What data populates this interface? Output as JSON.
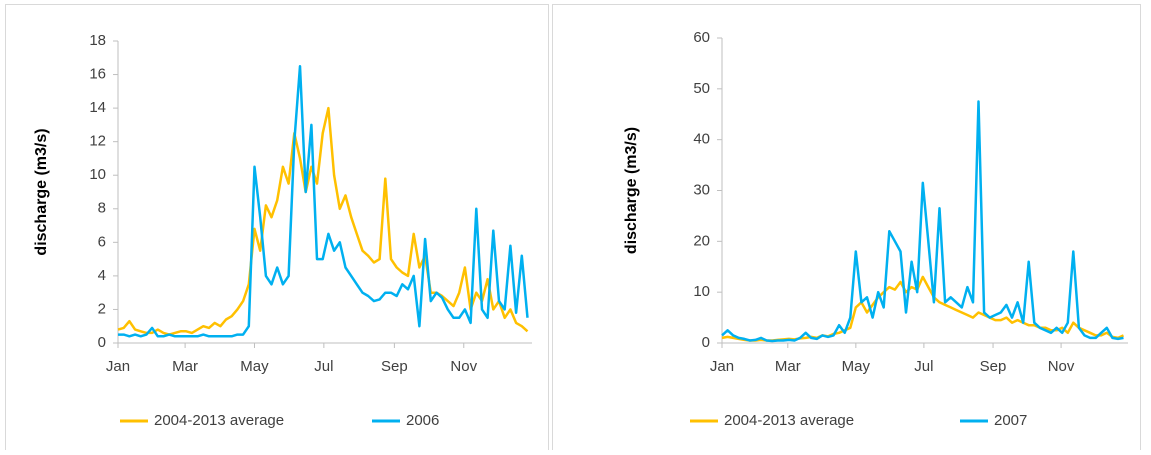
{
  "chart_data": [
    {
      "type": "line",
      "y_label": "discharge (m3/s)",
      "x": [
        1,
        6,
        11,
        16,
        21,
        26,
        31,
        36,
        41,
        46,
        51,
        56,
        61,
        66,
        71,
        76,
        81,
        86,
        91,
        96,
        101,
        106,
        111,
        116,
        121,
        126,
        131,
        136,
        141,
        146,
        151,
        156,
        161,
        166,
        171,
        176,
        181,
        186,
        191,
        196,
        201,
        206,
        211,
        216,
        221,
        226,
        231,
        236,
        241,
        246,
        251,
        256,
        261,
        266,
        271,
        276,
        281,
        286,
        291,
        296,
        301,
        306,
        311,
        316,
        321,
        326,
        331,
        336,
        341,
        346,
        351,
        356,
        361
      ],
      "xlim": [
        1,
        365
      ],
      "xticks": [
        {
          "value": 1,
          "label": "Jan"
        },
        {
          "value": 60,
          "label": "Mar"
        },
        {
          "value": 121,
          "label": "May"
        },
        {
          "value": 182,
          "label": "Jul"
        },
        {
          "value": 244,
          "label": "Sep"
        },
        {
          "value": 305,
          "label": "Nov"
        }
      ],
      "ylim": [
        0,
        18
      ],
      "yticks": [
        0,
        2,
        4,
        6,
        8,
        10,
        12,
        14,
        16,
        18
      ],
      "grid": false,
      "legend": "bottom",
      "series": [
        {
          "name": "2004-2013 average",
          "color": "#ffc000",
          "values": [
            0.8,
            0.9,
            1.3,
            0.8,
            0.7,
            0.6,
            0.6,
            0.8,
            0.6,
            0.5,
            0.6,
            0.7,
            0.7,
            0.6,
            0.8,
            1.0,
            0.9,
            1.2,
            1.0,
            1.4,
            1.6,
            2.0,
            2.5,
            3.5,
            6.8,
            5.5,
            8.2,
            7.5,
            8.5,
            10.5,
            9.5,
            12.5,
            11.0,
            9.0,
            10.5,
            9.5,
            12.5,
            14.0,
            10.0,
            8.0,
            8.8,
            7.5,
            6.5,
            5.5,
            5.2,
            4.8,
            5.0,
            9.8,
            5.0,
            4.5,
            4.2,
            4.0,
            6.5,
            4.5,
            5.2,
            3.0,
            3.0,
            2.8,
            2.5,
            2.2,
            3.0,
            4.5,
            2.0,
            3.0,
            2.5,
            3.8,
            2.0,
            2.5,
            1.5,
            2.0,
            1.2,
            1.0,
            0.7
          ]
        },
        {
          "name": "2006",
          "color": "#00b0f0",
          "values": [
            0.5,
            0.5,
            0.4,
            0.5,
            0.4,
            0.5,
            0.9,
            0.4,
            0.4,
            0.5,
            0.4,
            0.4,
            0.4,
            0.4,
            0.4,
            0.5,
            0.4,
            0.4,
            0.4,
            0.4,
            0.4,
            0.5,
            0.5,
            1.0,
            10.5,
            7.5,
            4.0,
            3.5,
            4.5,
            3.5,
            4.0,
            12.0,
            16.5,
            9.0,
            13.0,
            5.0,
            5.0,
            6.5,
            5.5,
            6.0,
            4.5,
            4.0,
            3.5,
            3.0,
            2.8,
            2.5,
            2.6,
            3.0,
            3.0,
            2.8,
            3.5,
            3.2,
            4.0,
            1.0,
            6.2,
            2.5,
            3.0,
            2.7,
            2.0,
            1.5,
            1.5,
            2.0,
            1.2,
            8.0,
            2.0,
            1.5,
            6.7,
            2.5,
            2.0,
            5.8,
            1.8,
            5.2,
            1.5
          ]
        }
      ]
    },
    {
      "type": "line",
      "y_label": "discharge (m3/s)",
      "x": [
        1,
        6,
        11,
        16,
        21,
        26,
        31,
        36,
        41,
        46,
        51,
        56,
        61,
        66,
        71,
        76,
        81,
        86,
        91,
        96,
        101,
        106,
        111,
        116,
        121,
        126,
        131,
        136,
        141,
        146,
        151,
        156,
        161,
        166,
        171,
        176,
        181,
        186,
        191,
        196,
        201,
        206,
        211,
        216,
        221,
        226,
        231,
        236,
        241,
        246,
        251,
        256,
        261,
        266,
        271,
        276,
        281,
        286,
        291,
        296,
        301,
        306,
        311,
        316,
        321,
        326,
        331,
        336,
        341,
        346,
        351,
        356,
        361
      ],
      "xlim": [
        1,
        365
      ],
      "xticks": [
        {
          "value": 1,
          "label": "Jan"
        },
        {
          "value": 60,
          "label": "Mar"
        },
        {
          "value": 121,
          "label": "May"
        },
        {
          "value": 182,
          "label": "Jul"
        },
        {
          "value": 244,
          "label": "Sep"
        },
        {
          "value": 305,
          "label": "Nov"
        }
      ],
      "ylim": [
        0,
        60
      ],
      "yticks": [
        0,
        10,
        20,
        30,
        40,
        50,
        60
      ],
      "grid": false,
      "legend": "bottom",
      "series": [
        {
          "name": "2004-2013 average",
          "color": "#ffc000",
          "values": [
            1.0,
            1.2,
            1.0,
            0.8,
            0.6,
            0.5,
            0.5,
            0.6,
            0.5,
            0.5,
            0.6,
            0.7,
            0.8,
            0.7,
            0.9,
            1.0,
            1.2,
            1.0,
            1.5,
            1.3,
            1.8,
            2.0,
            2.5,
            3.0,
            7.0,
            8.0,
            6.0,
            7.5,
            9.0,
            10.0,
            11.0,
            10.5,
            12.0,
            10.0,
            11.0,
            10.5,
            13.0,
            11.0,
            9.0,
            8.0,
            7.5,
            7.0,
            6.5,
            6.0,
            5.5,
            5.0,
            6.0,
            5.5,
            5.0,
            4.5,
            4.5,
            5.0,
            4.0,
            4.5,
            4.0,
            3.5,
            3.5,
            3.0,
            3.0,
            2.5,
            2.5,
            3.0,
            2.0,
            4.0,
            3.0,
            2.5,
            2.0,
            1.5,
            1.5,
            2.0,
            1.2,
            1.0,
            1.5
          ]
        },
        {
          "name": "2007",
          "color": "#00b0f0",
          "values": [
            1.5,
            2.5,
            1.5,
            1.0,
            0.8,
            0.5,
            0.6,
            1.0,
            0.5,
            0.4,
            0.5,
            0.5,
            0.6,
            0.5,
            1.0,
            2.0,
            1.0,
            0.8,
            1.5,
            1.2,
            1.5,
            3.5,
            2.0,
            5.0,
            18.0,
            8.0,
            9.0,
            5.0,
            10.0,
            7.0,
            22.0,
            20.0,
            18.0,
            6.0,
            16.0,
            10.0,
            31.5,
            20.0,
            8.0,
            26.5,
            8.0,
            9.0,
            8.0,
            7.0,
            11.0,
            8.0,
            47.5,
            6.0,
            5.0,
            5.5,
            6.0,
            7.5,
            5.0,
            8.0,
            4.0,
            16.0,
            4.0,
            3.0,
            2.5,
            2.0,
            3.0,
            2.0,
            4.0,
            18.0,
            3.0,
            1.5,
            1.0,
            1.0,
            2.0,
            3.0,
            1.0,
            0.8,
            1.0
          ]
        }
      ]
    }
  ]
}
